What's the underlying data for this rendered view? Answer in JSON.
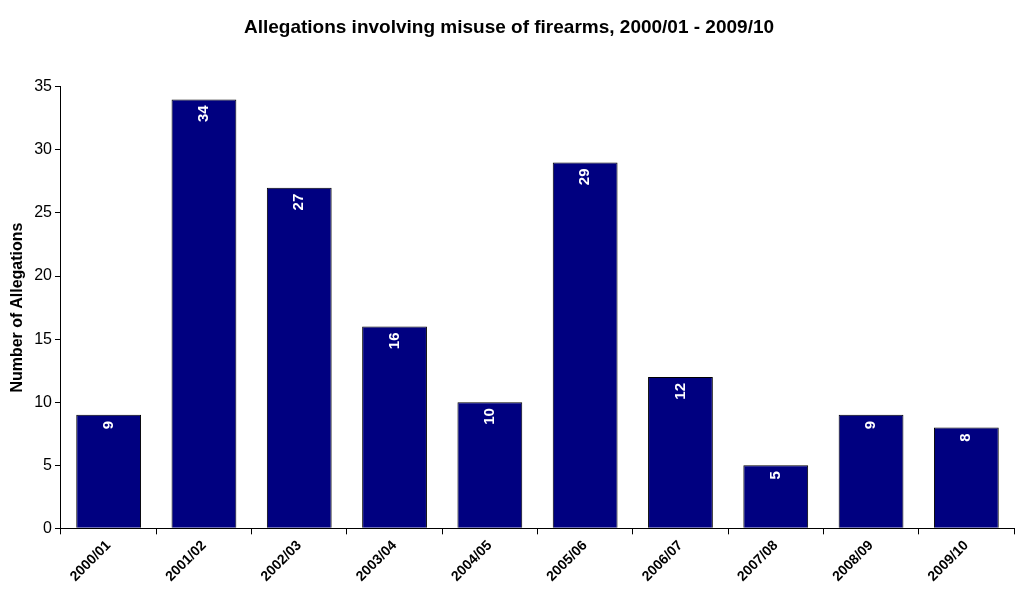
{
  "chart_data": {
    "type": "bar",
    "title": "Allegations involving misuse of firearms, 2000/01 - 2009/10",
    "ylabel": "Number of Allegations",
    "categories": [
      "2000/01",
      "2001/02",
      "2002/03",
      "2003/04",
      "2004/05",
      "2005/06",
      "2006/07",
      "2007/08",
      "2008/09",
      "2009/10"
    ],
    "values": [
      9,
      34,
      27,
      16,
      10,
      29,
      12,
      5,
      9,
      8
    ],
    "color": "#000080",
    "ylim": [
      0,
      35
    ],
    "yticks": [
      0,
      5,
      10,
      15,
      20,
      25,
      30,
      35
    ],
    "grid": false,
    "legend": false,
    "data_labels": true
  }
}
